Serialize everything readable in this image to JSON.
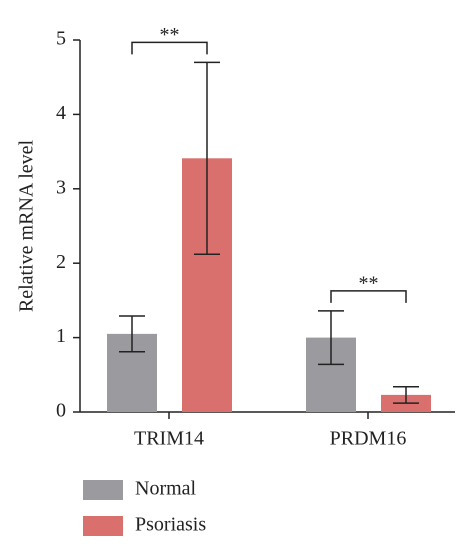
{
  "chart_data": {
    "type": "bar",
    "ylabel": "Relative mRNA level",
    "categories": [
      "TRIM14",
      "PRDM16"
    ],
    "series": [
      {
        "name": "Normal",
        "color": "#9b9a9f",
        "values": [
          1.05,
          1.0
        ],
        "errors": [
          0.24,
          0.36
        ]
      },
      {
        "name": "Psoriasis",
        "color": "#d9706d",
        "values": [
          3.41,
          0.23
        ],
        "errors": [
          1.29,
          0.11
        ]
      }
    ],
    "annotations": [
      "**",
      "**"
    ],
    "ylim": [
      0,
      5
    ],
    "yticks": [
      0,
      1,
      2,
      3,
      4,
      5
    ],
    "legend": "bottom-left"
  }
}
